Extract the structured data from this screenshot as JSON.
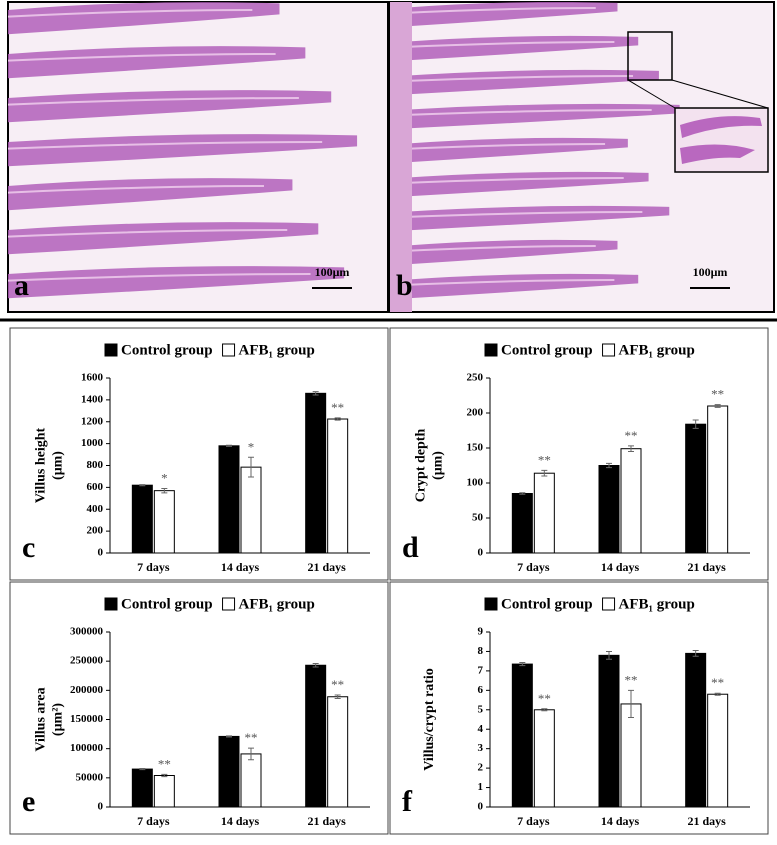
{
  "micrographs": [
    {
      "label": "a",
      "scale_bar": "100μm"
    },
    {
      "label": "b",
      "scale_bar": "100μm"
    }
  ],
  "chart_data": [
    {
      "type": "bar",
      "panel": "c",
      "ylabel": [
        "Villus height",
        "(μm)"
      ],
      "categories": [
        "7 days",
        "14 days",
        "21 days"
      ],
      "series": [
        {
          "name": "Control group",
          "color": "#000000",
          "values": [
            620,
            980,
            1460
          ],
          "errors": [
            5,
            5,
            15
          ]
        },
        {
          "name": "AFB₁ group",
          "color": "#ffffff",
          "values": [
            570,
            785,
            1225
          ],
          "errors": [
            20,
            90,
            10
          ],
          "significance": [
            "*",
            "*",
            "**"
          ]
        }
      ],
      "ylim": [
        0,
        1600
      ],
      "yticks": [
        0,
        200,
        400,
        600,
        800,
        1000,
        1200,
        1400,
        1600
      ]
    },
    {
      "type": "bar",
      "panel": "d",
      "ylabel": [
        "Crypt depth",
        "(μm)"
      ],
      "categories": [
        "7 days",
        "14 days",
        "21 days"
      ],
      "series": [
        {
          "name": "Control group",
          "color": "#000000",
          "values": [
            85,
            125,
            184
          ],
          "errors": [
            1,
            3,
            6
          ]
        },
        {
          "name": "AFB₁ group",
          "color": "#ffffff",
          "values": [
            114,
            149,
            210
          ],
          "errors": [
            4,
            4,
            2
          ],
          "significance": [
            "**",
            "**",
            "**"
          ]
        }
      ],
      "ylim": [
        0,
        250
      ],
      "yticks": [
        0,
        50,
        100,
        150,
        200,
        250
      ]
    },
    {
      "type": "bar",
      "panel": "e",
      "ylabel": [
        "Villus area",
        "(μm²)"
      ],
      "categories": [
        "7 days",
        "14 days",
        "21 days"
      ],
      "series": [
        {
          "name": "Control group",
          "color": "#000000",
          "values": [
            65000,
            121000,
            243000
          ],
          "errors": [
            1000,
            1000,
            3000
          ]
        },
        {
          "name": "AFB₁ group",
          "color": "#ffffff",
          "values": [
            54000,
            91000,
            189000
          ],
          "errors": [
            2000,
            10000,
            3000
          ],
          "significance": [
            "**",
            "**",
            "**"
          ]
        }
      ],
      "ylim": [
        0,
        300000
      ],
      "yticks": [
        0,
        50000,
        100000,
        150000,
        200000,
        250000,
        300000
      ]
    },
    {
      "type": "bar",
      "panel": "f",
      "ylabel": [
        "Villus/crypt ratio"
      ],
      "categories": [
        "7 days",
        "14 days",
        "21 days"
      ],
      "series": [
        {
          "name": "Control group",
          "color": "#000000",
          "values": [
            7.35,
            7.8,
            7.9
          ],
          "errors": [
            0.08,
            0.2,
            0.15
          ]
        },
        {
          "name": "AFB₁ group",
          "color": "#ffffff",
          "values": [
            5.0,
            5.3,
            5.8
          ],
          "errors": [
            0.05,
            0.7,
            0.05
          ],
          "significance": [
            "**",
            "**",
            "**"
          ]
        }
      ],
      "ylim": [
        0,
        9
      ],
      "yticks": [
        0,
        1,
        2,
        3,
        4,
        5,
        6,
        7,
        8,
        9
      ]
    }
  ]
}
